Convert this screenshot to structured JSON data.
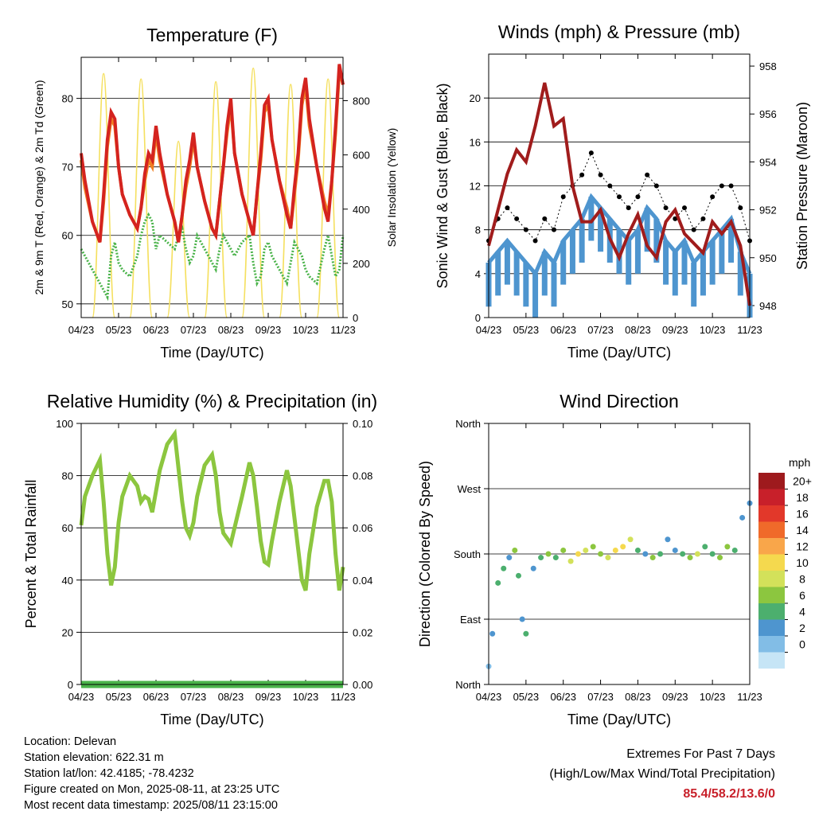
{
  "chart_data": [
    {
      "type": "line",
      "title": "Temperature (F)",
      "xlabel": "Time (Day/UTC)",
      "ylabel": "2m & 9m T (Red, Orange) & 2m Td (Green)",
      "ylabel_right": "Solar Insolation (Yellow)",
      "x_ticks": [
        "04/23",
        "05/23",
        "06/23",
        "07/23",
        "08/23",
        "09/23",
        "10/23",
        "11/23"
      ],
      "ylim": [
        48,
        86
      ],
      "y_ticks": [
        50,
        60,
        70,
        80
      ],
      "ylim_right": [
        0,
        960
      ],
      "y_ticks_right": [
        0,
        200,
        400,
        600,
        800
      ],
      "grid": true,
      "days": [
        0,
        0.1,
        0.3,
        0.5,
        0.6,
        0.7,
        0.8,
        0.9,
        1.0,
        1.1,
        1.3,
        1.5,
        1.6,
        1.7,
        1.8,
        1.9,
        2.0,
        2.1,
        2.3,
        2.5,
        2.6,
        2.7,
        2.8,
        2.9,
        3.0,
        3.1,
        3.3,
        3.5,
        3.6,
        3.7,
        3.8,
        3.9,
        4.0,
        4.1,
        4.3,
        4.5,
        4.6,
        4.7,
        4.8,
        4.9,
        5.0,
        5.1,
        5.3,
        5.5,
        5.6,
        5.7,
        5.8,
        5.9,
        6.0,
        6.1,
        6.3,
        6.5,
        6.6,
        6.7,
        6.8,
        6.9,
        7.0
      ],
      "series": [
        {
          "name": "2m T",
          "color": "#d4231f",
          "values": [
            72,
            68,
            62,
            59,
            66,
            74,
            78,
            77,
            70,
            66,
            63,
            61,
            64,
            69,
            72,
            71,
            76,
            72,
            66,
            62,
            59,
            63,
            68,
            71,
            75,
            70,
            65,
            61,
            60,
            65,
            70,
            76,
            80,
            72,
            66,
            62,
            60,
            66,
            72,
            79,
            80,
            74,
            68,
            63,
            61,
            67,
            72,
            80,
            83,
            77,
            70,
            64,
            62,
            68,
            76,
            85,
            82
          ]
        },
        {
          "name": "9m T",
          "color": "#f07e22",
          "values": [
            71,
            67,
            62,
            59,
            65,
            73,
            77,
            76,
            70,
            66,
            63,
            61,
            64,
            68,
            71,
            70,
            75,
            71,
            66,
            62,
            59,
            63,
            67,
            70,
            74,
            70,
            65,
            61,
            60,
            65,
            70,
            75,
            79,
            72,
            66,
            62,
            60,
            66,
            71,
            78,
            79,
            74,
            68,
            64,
            61,
            66,
            71,
            79,
            82,
            76,
            70,
            65,
            63,
            68,
            75,
            84,
            82
          ]
        },
        {
          "name": "2m Td",
          "color": "#4ab34a",
          "values": [
            58,
            57,
            55,
            53,
            52,
            51,
            57,
            59,
            56,
            55,
            54,
            57,
            60,
            62,
            63,
            62,
            58,
            60,
            59,
            58,
            60,
            61,
            58,
            56,
            57,
            60,
            58,
            56,
            55,
            58,
            60,
            59,
            58,
            57,
            59,
            60,
            56,
            53,
            54,
            58,
            59,
            57,
            55,
            53,
            56,
            59,
            58,
            57,
            55,
            54,
            53,
            58,
            60,
            57,
            54,
            55,
            60
          ]
        }
      ],
      "solar": {
        "name": "Solar Insolation",
        "color": "#f5e060",
        "peak_day": [
          0.6,
          1.6,
          2.6,
          3.6,
          4.6,
          5.6,
          6.6
        ],
        "peak_value": [
          900,
          880,
          650,
          870,
          920,
          860,
          880
        ]
      }
    },
    {
      "type": "scatter",
      "title": "Winds (mph) & Pressure (mb)",
      "xlabel": "Time (Day/UTC)",
      "ylabel": "Sonic Wind & Gust (Blue, Black)",
      "ylabel_right": "Station Pressure (Maroon)",
      "x_ticks": [
        "04/23",
        "05/23",
        "06/23",
        "07/23",
        "08/23",
        "09/23",
        "10/23",
        "11/23"
      ],
      "ylim": [
        0,
        24
      ],
      "y_ticks": [
        0,
        4,
        8,
        12,
        16,
        20
      ],
      "ylim_right": [
        947.5,
        958.5
      ],
      "y_ticks_right": [
        948,
        950,
        952,
        954,
        956,
        958
      ],
      "grid": true,
      "days": [
        0,
        0.25,
        0.5,
        0.75,
        1.0,
        1.25,
        1.5,
        1.75,
        2.0,
        2.25,
        2.5,
        2.75,
        3.0,
        3.25,
        3.5,
        3.75,
        4.0,
        4.25,
        4.5,
        4.75,
        5.0,
        5.25,
        5.5,
        5.75,
        6.0,
        6.25,
        6.5,
        6.75,
        7.0
      ],
      "series": [
        {
          "name": "Sonic Wind",
          "color": "#4e95cf",
          "values": [
            5,
            6,
            7,
            6,
            5,
            4,
            6,
            5,
            7,
            8,
            9,
            11,
            10,
            9,
            8,
            7,
            8,
            10,
            9,
            7,
            6,
            7,
            5,
            6,
            7,
            8,
            9,
            6,
            4
          ]
        },
        {
          "name": "Gust",
          "color": "#000000",
          "values": [
            7,
            9,
            10,
            9,
            8,
            7,
            9,
            8,
            11,
            12,
            13,
            15,
            13,
            12,
            11,
            10,
            11,
            13,
            12,
            10,
            9,
            10,
            8,
            9,
            11,
            12,
            12,
            10,
            7
          ]
        },
        {
          "name": "Station Pressure",
          "color": "#a01c1c",
          "axis": "right",
          "values": [
            950.5,
            952.0,
            953.5,
            954.5,
            954.0,
            955.5,
            957.3,
            955.5,
            955.8,
            953.0,
            951.5,
            951.5,
            952.0,
            950.8,
            950.0,
            951.0,
            951.8,
            950.5,
            950.0,
            951.5,
            952.0,
            951.0,
            950.6,
            950.2,
            951.5,
            951.0,
            951.5,
            950.5,
            948.0
          ]
        }
      ]
    },
    {
      "type": "line",
      "title": "Relative Humidity (%) & Precipitation (in)",
      "xlabel": "Time (Day/UTC)",
      "ylabel": "Percent & Total Rainfall",
      "x_ticks": [
        "04/23",
        "05/23",
        "06/23",
        "07/23",
        "08/23",
        "09/23",
        "10/23",
        "11/23"
      ],
      "ylim": [
        0,
        100
      ],
      "y_ticks": [
        0,
        20,
        40,
        60,
        80,
        100
      ],
      "ylim_right": [
        0,
        0.1
      ],
      "y_ticks_right": [
        "0.00",
        "0.02",
        "0.04",
        "0.06",
        "0.08",
        "0.10"
      ],
      "grid": true,
      "days": [
        0,
        0.1,
        0.3,
        0.5,
        0.6,
        0.7,
        0.8,
        0.9,
        1.0,
        1.1,
        1.3,
        1.5,
        1.6,
        1.7,
        1.8,
        1.9,
        2.0,
        2.1,
        2.3,
        2.5,
        2.6,
        2.7,
        2.8,
        2.9,
        3.0,
        3.1,
        3.3,
        3.5,
        3.6,
        3.7,
        3.8,
        3.9,
        4.0,
        4.1,
        4.3,
        4.5,
        4.6,
        4.7,
        4.8,
        4.9,
        5.0,
        5.1,
        5.3,
        5.5,
        5.6,
        5.7,
        5.8,
        5.9,
        6.0,
        6.1,
        6.3,
        6.5,
        6.6,
        6.7,
        6.8,
        6.9,
        7.0
      ],
      "series": [
        {
          "name": "Relative Humidity",
          "color": "#8cc63f",
          "values": [
            61,
            72,
            80,
            86,
            70,
            50,
            38,
            45,
            62,
            72,
            80,
            76,
            70,
            72,
            71,
            66,
            74,
            82,
            92,
            96,
            83,
            70,
            60,
            57,
            62,
            72,
            84,
            88,
            80,
            66,
            58,
            56,
            54,
            60,
            72,
            85,
            80,
            68,
            55,
            47,
            46,
            55,
            70,
            82,
            76,
            64,
            52,
            40,
            36,
            50,
            68,
            78,
            78,
            70,
            50,
            36,
            45
          ]
        },
        {
          "name": "Total Precipitation",
          "color": "#4ab34a",
          "axis": "right",
          "values": [
            0,
            0,
            0,
            0,
            0,
            0,
            0,
            0,
            0,
            0,
            0,
            0,
            0,
            0,
            0,
            0,
            0,
            0,
            0,
            0,
            0,
            0,
            0,
            0,
            0,
            0,
            0,
            0,
            0,
            0,
            0,
            0,
            0,
            0,
            0,
            0,
            0,
            0,
            0,
            0,
            0,
            0,
            0,
            0,
            0,
            0,
            0,
            0,
            0,
            0,
            0,
            0,
            0,
            0,
            0,
            0,
            0
          ]
        }
      ]
    },
    {
      "type": "scatter",
      "title": "Wind Direction",
      "xlabel": "Time (Day/UTC)",
      "ylabel": "Direction (Colored By Speed)",
      "x_ticks": [
        "04/23",
        "05/23",
        "06/23",
        "07/23",
        "08/23",
        "09/23",
        "10/23",
        "11/23"
      ],
      "y_ticks": [
        "North",
        "East",
        "South",
        "West",
        "North"
      ],
      "ylim": [
        0,
        360
      ],
      "grid": true,
      "days": [
        0,
        0.1,
        0.25,
        0.4,
        0.55,
        0.7,
        0.8,
        0.9,
        1.0,
        1.2,
        1.4,
        1.6,
        1.8,
        2.0,
        2.2,
        2.4,
        2.6,
        2.8,
        3.0,
        3.2,
        3.4,
        3.6,
        3.8,
        4.0,
        4.2,
        4.4,
        4.6,
        4.8,
        5.0,
        5.2,
        5.4,
        5.6,
        5.8,
        6.0,
        6.2,
        6.4,
        6.6,
        6.8,
        7.0
      ],
      "directions": [
        25,
        70,
        140,
        160,
        175,
        185,
        150,
        90,
        70,
        160,
        175,
        180,
        175,
        185,
        170,
        180,
        185,
        190,
        180,
        175,
        185,
        190,
        200,
        185,
        180,
        175,
        180,
        200,
        185,
        180,
        175,
        180,
        190,
        180,
        175,
        190,
        185,
        230,
        250
      ],
      "speeds": [
        3,
        5,
        6,
        7,
        5,
        8,
        6,
        4,
        6,
        5,
        7,
        8,
        6,
        9,
        11,
        12,
        10,
        8,
        9,
        10,
        12,
        13,
        11,
        7,
        5,
        8,
        6,
        4,
        5,
        7,
        9,
        10,
        6,
        7,
        8,
        9,
        6,
        5,
        4
      ],
      "legend": {
        "title": "mph",
        "levels": [
          "20+",
          "18",
          "16",
          "14",
          "12",
          "10",
          "8",
          "6",
          "4",
          "2",
          "0"
        ],
        "colors": [
          "#9e1a1d",
          "#c8202a",
          "#e2382a",
          "#f06a2a",
          "#f9a64a",
          "#f5d94e",
          "#d3e15a",
          "#8cc63f",
          "#4caf6e",
          "#4e95cf",
          "#82bde6",
          "#c6e5f6"
        ]
      }
    }
  ],
  "info": {
    "location": "Location: Delevan",
    "elevation": "Station elevation: 622.31 m",
    "latlon": "Station lat/lon: 42.4185; -78.4232",
    "created": "Figure created on Mon, 2025-08-11, at 23:25 UTC",
    "latest": "Most recent data timestamp: 2025/08/11 23:15:00"
  },
  "extremes": {
    "title": "Extremes For Past 7 Days",
    "subtitle": "(High/Low/Max Wind/Total Precipitation)",
    "values": "85.4/58.2/13.6/0"
  }
}
